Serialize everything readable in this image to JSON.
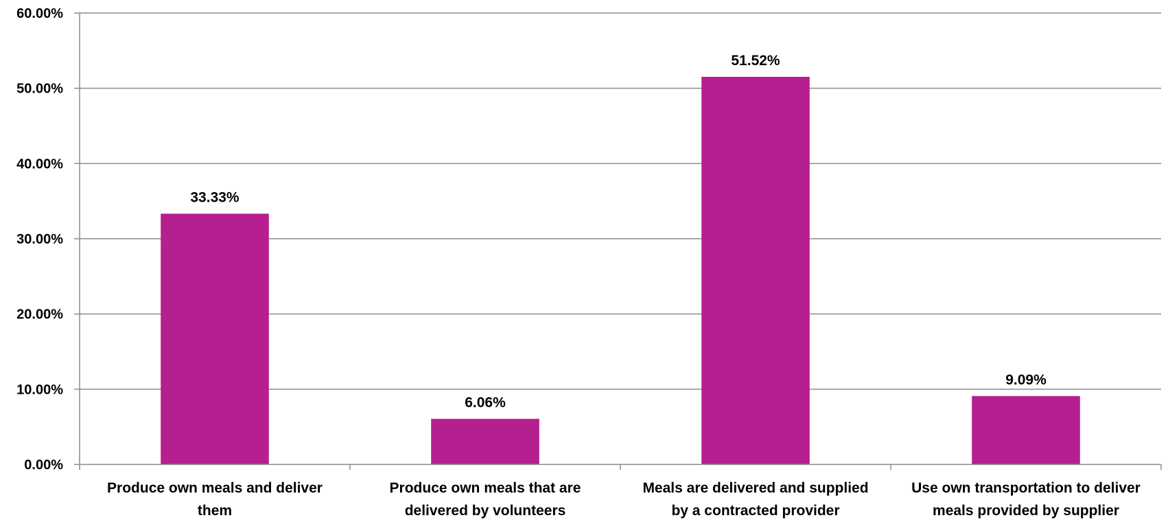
{
  "chart_data": {
    "type": "bar",
    "categories": [
      "Produce own meals and deliver them",
      "Produce own meals that are delivered by volunteers",
      "Meals are delivered and supplied by a contracted provider",
      "Use own transportation to deliver meals provided by supplier"
    ],
    "category_lines": [
      [
        "Produce own meals and deliver",
        "them"
      ],
      [
        "Produce own meals that are",
        "delivered by volunteers"
      ],
      [
        "Meals are delivered and supplied",
        "by a contracted provider"
      ],
      [
        "Use own transportation to deliver",
        "meals provided by supplier"
      ]
    ],
    "values": [
      33.33,
      6.06,
      51.52,
      9.09
    ],
    "data_labels": [
      "33.33%",
      "6.06%",
      "51.52%",
      "9.09%"
    ],
    "yticks": [
      0,
      10,
      20,
      30,
      40,
      50,
      60
    ],
    "ytick_labels": [
      "0.00%",
      "10.00%",
      "20.00%",
      "30.00%",
      "40.00%",
      "50.00%",
      "60.00%"
    ],
    "ylim": [
      0,
      60
    ],
    "grid": true,
    "bar_color": "#b51f8f",
    "title": "",
    "xlabel": "",
    "ylabel": ""
  }
}
